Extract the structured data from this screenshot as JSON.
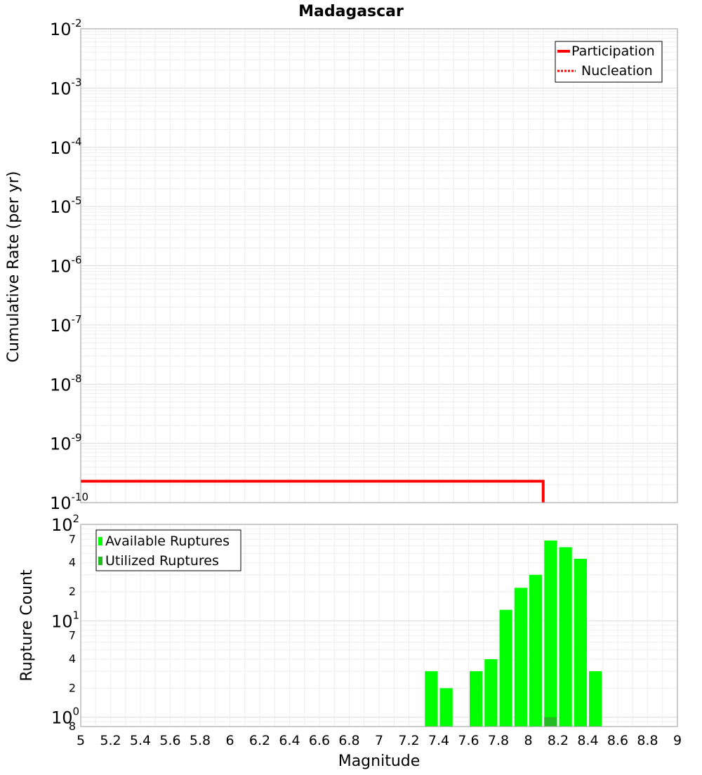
{
  "title": "Madagascar",
  "chart_data": [
    {
      "type": "line",
      "panel": "top",
      "ylabel": "Cumulative Rate (per yr)",
      "yscale": "log",
      "ylim": [
        1e-10,
        0.01
      ],
      "xlim": [
        5,
        9
      ],
      "ytick_base": "10",
      "ytick_exponents": [
        "-2",
        "-3",
        "-4",
        "-5",
        "-6",
        "-7",
        "-8",
        "-9",
        "-10"
      ],
      "grid": true,
      "legend_position": "top-right",
      "series": [
        {
          "name": "Participation",
          "style": "solid",
          "color": "#ff0000",
          "points": [
            [
              5.0,
              2.3e-10
            ],
            [
              8.1,
              2.3e-10
            ],
            [
              8.1,
              1e-10
            ]
          ]
        },
        {
          "name": "Nucleation",
          "style": "dotted",
          "color": "#ff0000",
          "points": []
        }
      ]
    },
    {
      "type": "bar",
      "panel": "bottom",
      "xlabel": "Magnitude",
      "ylabel": "Rupture Count",
      "yscale": "log",
      "ylim": [
        0.8,
        100
      ],
      "xlim": [
        5,
        9
      ],
      "grid": true,
      "legend_position": "top-left",
      "x_ticks": [
        "5",
        "5.2",
        "5.4",
        "5.6",
        "5.8",
        "6",
        "6.2",
        "6.4",
        "6.6",
        "6.8",
        "7",
        "7.2",
        "7.4",
        "7.6",
        "7.8",
        "8",
        "8.2",
        "8.4",
        "8.6",
        "8.8",
        "9"
      ],
      "y_major_labels": [
        {
          "base": "10",
          "exp": "2",
          "value": 100
        },
        {
          "base": "10",
          "exp": "1",
          "value": 10
        },
        {
          "base": "10",
          "exp": "0",
          "value": 1
        }
      ],
      "y_minor_labels": [
        {
          "label": "7",
          "value": 70
        },
        {
          "label": "4",
          "value": 40
        },
        {
          "label": "2",
          "value": 20
        },
        {
          "label": "7",
          "value": 7
        },
        {
          "label": "4",
          "value": 4
        },
        {
          "label": "2",
          "value": 2
        },
        {
          "label": "8",
          "value": 0.8
        }
      ],
      "bin_width": 0.1,
      "series": [
        {
          "name": "Available Ruptures",
          "color": "#00ff00",
          "x": [
            7.35,
            7.45,
            7.65,
            7.75,
            7.85,
            7.95,
            8.05,
            8.15,
            8.25,
            8.35,
            8.45
          ],
          "values": [
            3,
            2,
            3,
            4,
            13,
            22,
            30,
            68,
            58,
            44,
            3
          ]
        },
        {
          "name": "Utilized Ruptures",
          "color": "#22bb22",
          "x": [
            8.15
          ],
          "values": [
            1
          ]
        }
      ]
    }
  ]
}
